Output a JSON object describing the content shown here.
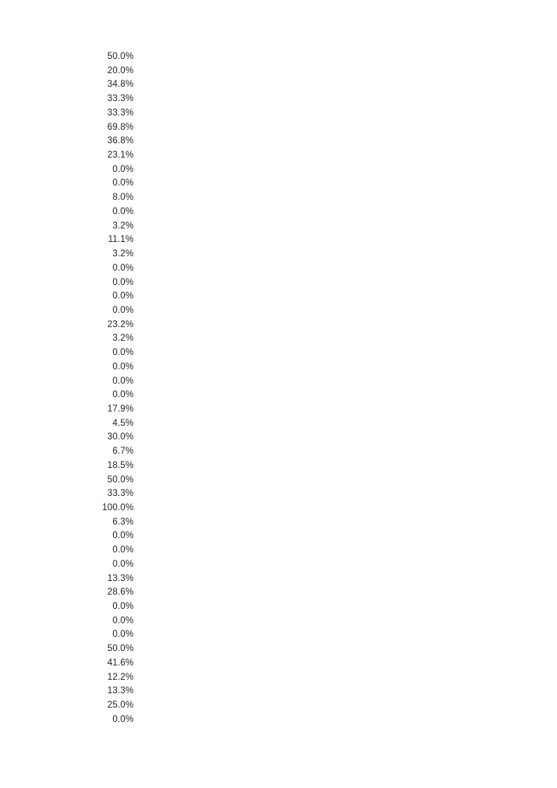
{
  "page": {
    "background_color": "#ffffff",
    "text_color": "#262626"
  },
  "percent_column": {
    "description": "single right-aligned column of percentage values",
    "values": [
      "50.0%",
      "20.0%",
      "34.8%",
      "33.3%",
      "33.3%",
      "69.8%",
      "36.8%",
      "23.1%",
      "0.0%",
      "0.0%",
      "8.0%",
      "0.0%",
      "3.2%",
      "11.1%",
      "3.2%",
      "0.0%",
      "0.0%",
      "0.0%",
      "0.0%",
      "23.2%",
      "3.2%",
      "0.0%",
      "0.0%",
      "0.0%",
      "0.0%",
      "17.9%",
      "4.5%",
      "30.0%",
      "6.7%",
      "18.5%",
      "50.0%",
      "33.3%",
      "100.0%",
      "6.3%",
      "0.0%",
      "0.0%",
      "0.0%",
      "13.3%",
      "28.6%",
      "0.0%",
      "0.0%",
      "0.0%",
      "50.0%",
      "41.6%",
      "12.2%",
      "13.3%",
      "25.0%",
      "0.0%"
    ]
  }
}
